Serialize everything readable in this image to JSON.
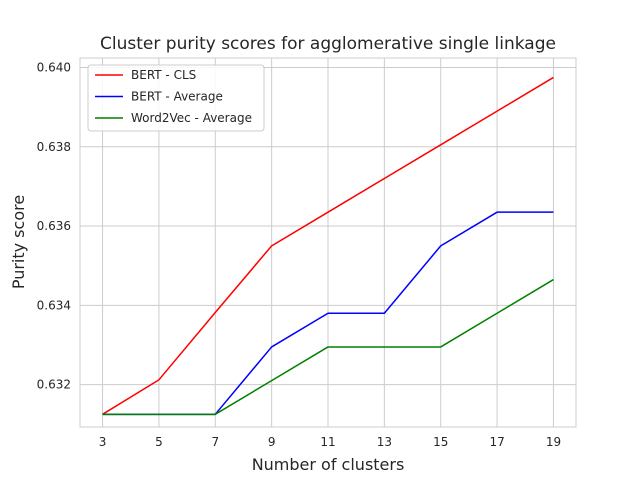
{
  "chart_data": {
    "type": "line",
    "title": "Cluster purity scores for agglomerative single linkage",
    "xlabel": "Number of clusters",
    "ylabel": "Purity score",
    "x": [
      3,
      5,
      7,
      9,
      11,
      13,
      15,
      17,
      19
    ],
    "xlim": [
      2.2,
      19.8
    ],
    "ylim": [
      0.63093,
      0.64024
    ],
    "x_ticks": [
      "3",
      "5",
      "7",
      "9",
      "11",
      "13",
      "15",
      "17",
      "19"
    ],
    "y_ticks": [
      "0.632",
      "0.634",
      "0.636",
      "0.638",
      "0.640"
    ],
    "grid": true,
    "legend_position": "top-left",
    "series": [
      {
        "name": "BERT - CLS",
        "color": "#ff0000",
        "values": [
          0.63125,
          0.63212,
          0.63382,
          0.6355,
          0.63635,
          0.6372,
          0.63805,
          0.6389,
          0.63975
        ]
      },
      {
        "name": "BERT - Average",
        "color": "#0000ff",
        "values": [
          0.63125,
          0.63125,
          0.63125,
          0.63295,
          0.6338,
          0.6338,
          0.6355,
          0.63635,
          0.63635
        ]
      },
      {
        "name": "Word2Vec - Average",
        "color": "#008000",
        "values": [
          0.63125,
          0.63125,
          0.63125,
          0.6321,
          0.63295,
          0.63295,
          0.63295,
          0.6338,
          0.63465
        ]
      }
    ]
  }
}
